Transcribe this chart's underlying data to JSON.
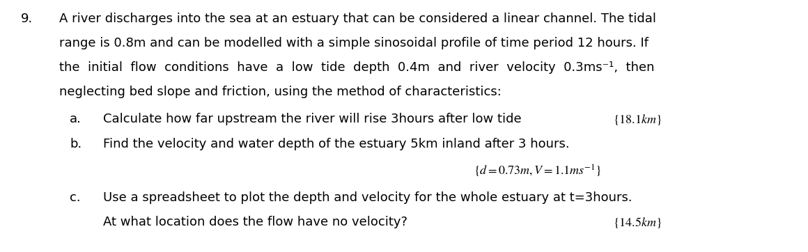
{
  "background_color": "#ffffff",
  "fig_width": 11.6,
  "fig_height": 3.62,
  "number": "9.",
  "main_text_lines": [
    "A river discharges into the sea at an estuary that can be considered a linear channel. The tidal",
    "range is 0.8m and can be modelled with a simple sinosoidal profile of time period 12 hours. If",
    "the  initial  flow  conditions  have  a  low  tide  depth  0.4m  and  river  velocity  0.3ms⁻¹,  then",
    "neglecting bed slope and friction, using the method of characteristics:"
  ],
  "item_a_label": "a.",
  "item_a_text": "Calculate how far upstream the river will rise 3hours after low tide",
  "item_a_answer": "$\\{18.1\\mathit{km}\\}$",
  "item_b_label": "b.",
  "item_b_text": "Find the velocity and water depth of the estuary 5km inland after 3 hours.",
  "item_b_answer": "$\\{d = 0.73m, V = 1.1ms^{-1}\\}$",
  "item_c_label": "c.",
  "item_c_text": "Use a spreadsheet to plot the depth and velocity for the whole estuary at t=3hours.",
  "item_c_text2": "At what location does the flow have no velocity?",
  "item_c_answer": "$\\{14.5\\mathit{km}\\}$",
  "font_family": "DejaVu Sans",
  "main_fontsize": 13.0,
  "text_color": "#000000"
}
